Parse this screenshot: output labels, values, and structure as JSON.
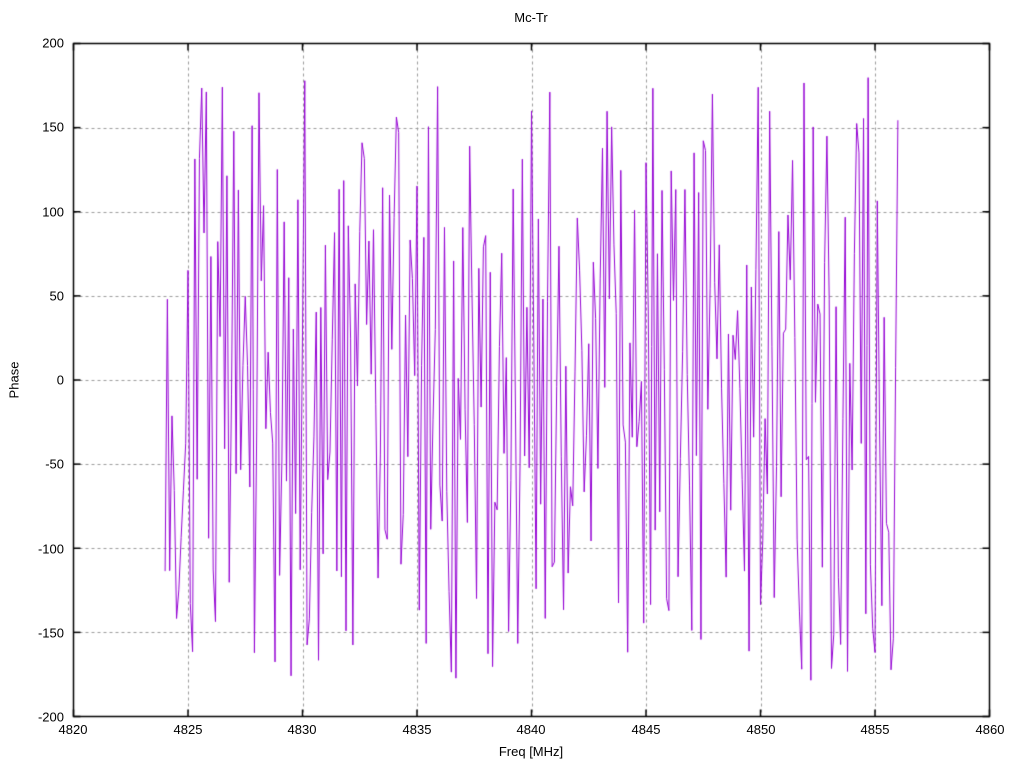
{
  "window": {
    "background": "#ffffff"
  },
  "chart_data": {
    "type": "line",
    "title": "Mc-Tr",
    "xlabel": "Freq [MHz]",
    "ylabel": "Phase",
    "xlim": [
      4820,
      4860
    ],
    "ylim": [
      -200,
      200
    ],
    "xticks": [
      4820,
      4825,
      4830,
      4835,
      4840,
      4845,
      4850,
      4855,
      4860
    ],
    "yticks": [
      200,
      150,
      100,
      50,
      0,
      -50,
      -100,
      -150,
      -200
    ],
    "grid": true,
    "grid_color": "#9a9a9a",
    "border_color": "#000000",
    "legend": false,
    "series": [
      {
        "name": "phase",
        "color": "#9400D3",
        "x_start": 4824.0,
        "x_end": 4856.0,
        "n_points": 321,
        "y_range": [
          -181,
          181
        ],
        "synthesis": {
          "kind": "wrapped-phase-noise",
          "seed": 1337,
          "step_scale": 320
        },
        "note": "Dense wrapped phase noise between -180 and +180 deg; individual samples not resolvable from pixels, regenerated deterministically from seed."
      }
    ]
  }
}
